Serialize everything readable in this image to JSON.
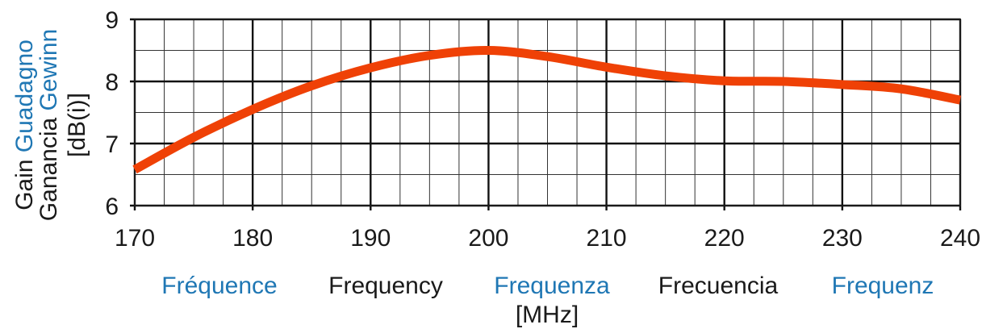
{
  "chart_data": {
    "type": "line",
    "x": [
      170,
      175,
      180,
      185,
      190,
      195,
      200,
      205,
      210,
      215,
      220,
      225,
      230,
      235,
      240
    ],
    "series": [
      {
        "values": [
          6.58,
          7.1,
          7.55,
          7.93,
          8.22,
          8.42,
          8.5,
          8.4,
          8.23,
          8.09,
          8.01,
          8.0,
          7.95,
          7.88,
          7.7
        ]
      }
    ],
    "xlim": [
      170,
      240
    ],
    "ylim": [
      6,
      9
    ],
    "xticks": [
      170,
      180,
      190,
      200,
      210,
      220,
      230,
      240
    ],
    "yticks": [
      6,
      7,
      8,
      9
    ],
    "xtick_labels": [
      "170",
      "180",
      "190",
      "200",
      "210",
      "220",
      "230",
      "240"
    ],
    "ytick_labels": [
      "6",
      "7",
      "8",
      "9"
    ],
    "x_minor_step": 2.5,
    "y_minor_step": 0.5,
    "grid": true,
    "line_color": "#ef4106",
    "ylabel_lines": [
      [
        {
          "text": "Gain",
          "color": "#1a1a1a"
        },
        {
          "text": "Guadagno",
          "color": "#1f77b4"
        }
      ],
      [
        {
          "text": "Ganancia",
          "color": "#1a1a1a"
        },
        {
          "text": "Gewinn",
          "color": "#1f77b4"
        }
      ],
      [
        {
          "text": "[dB(i)]",
          "color": "#1a1a1a"
        }
      ]
    ],
    "xlabel_words": [
      {
        "text": "Fréquence",
        "color": "#1f77b4"
      },
      {
        "text": "Frequency",
        "color": "#1a1a1a"
      },
      {
        "text": "Frequenza",
        "color": "#1f77b4"
      },
      {
        "text": "Frecuencia",
        "color": "#1a1a1a"
      },
      {
        "text": "Frequenz",
        "color": "#1f77b4"
      }
    ],
    "xlabel_unit": "[MHz]"
  }
}
